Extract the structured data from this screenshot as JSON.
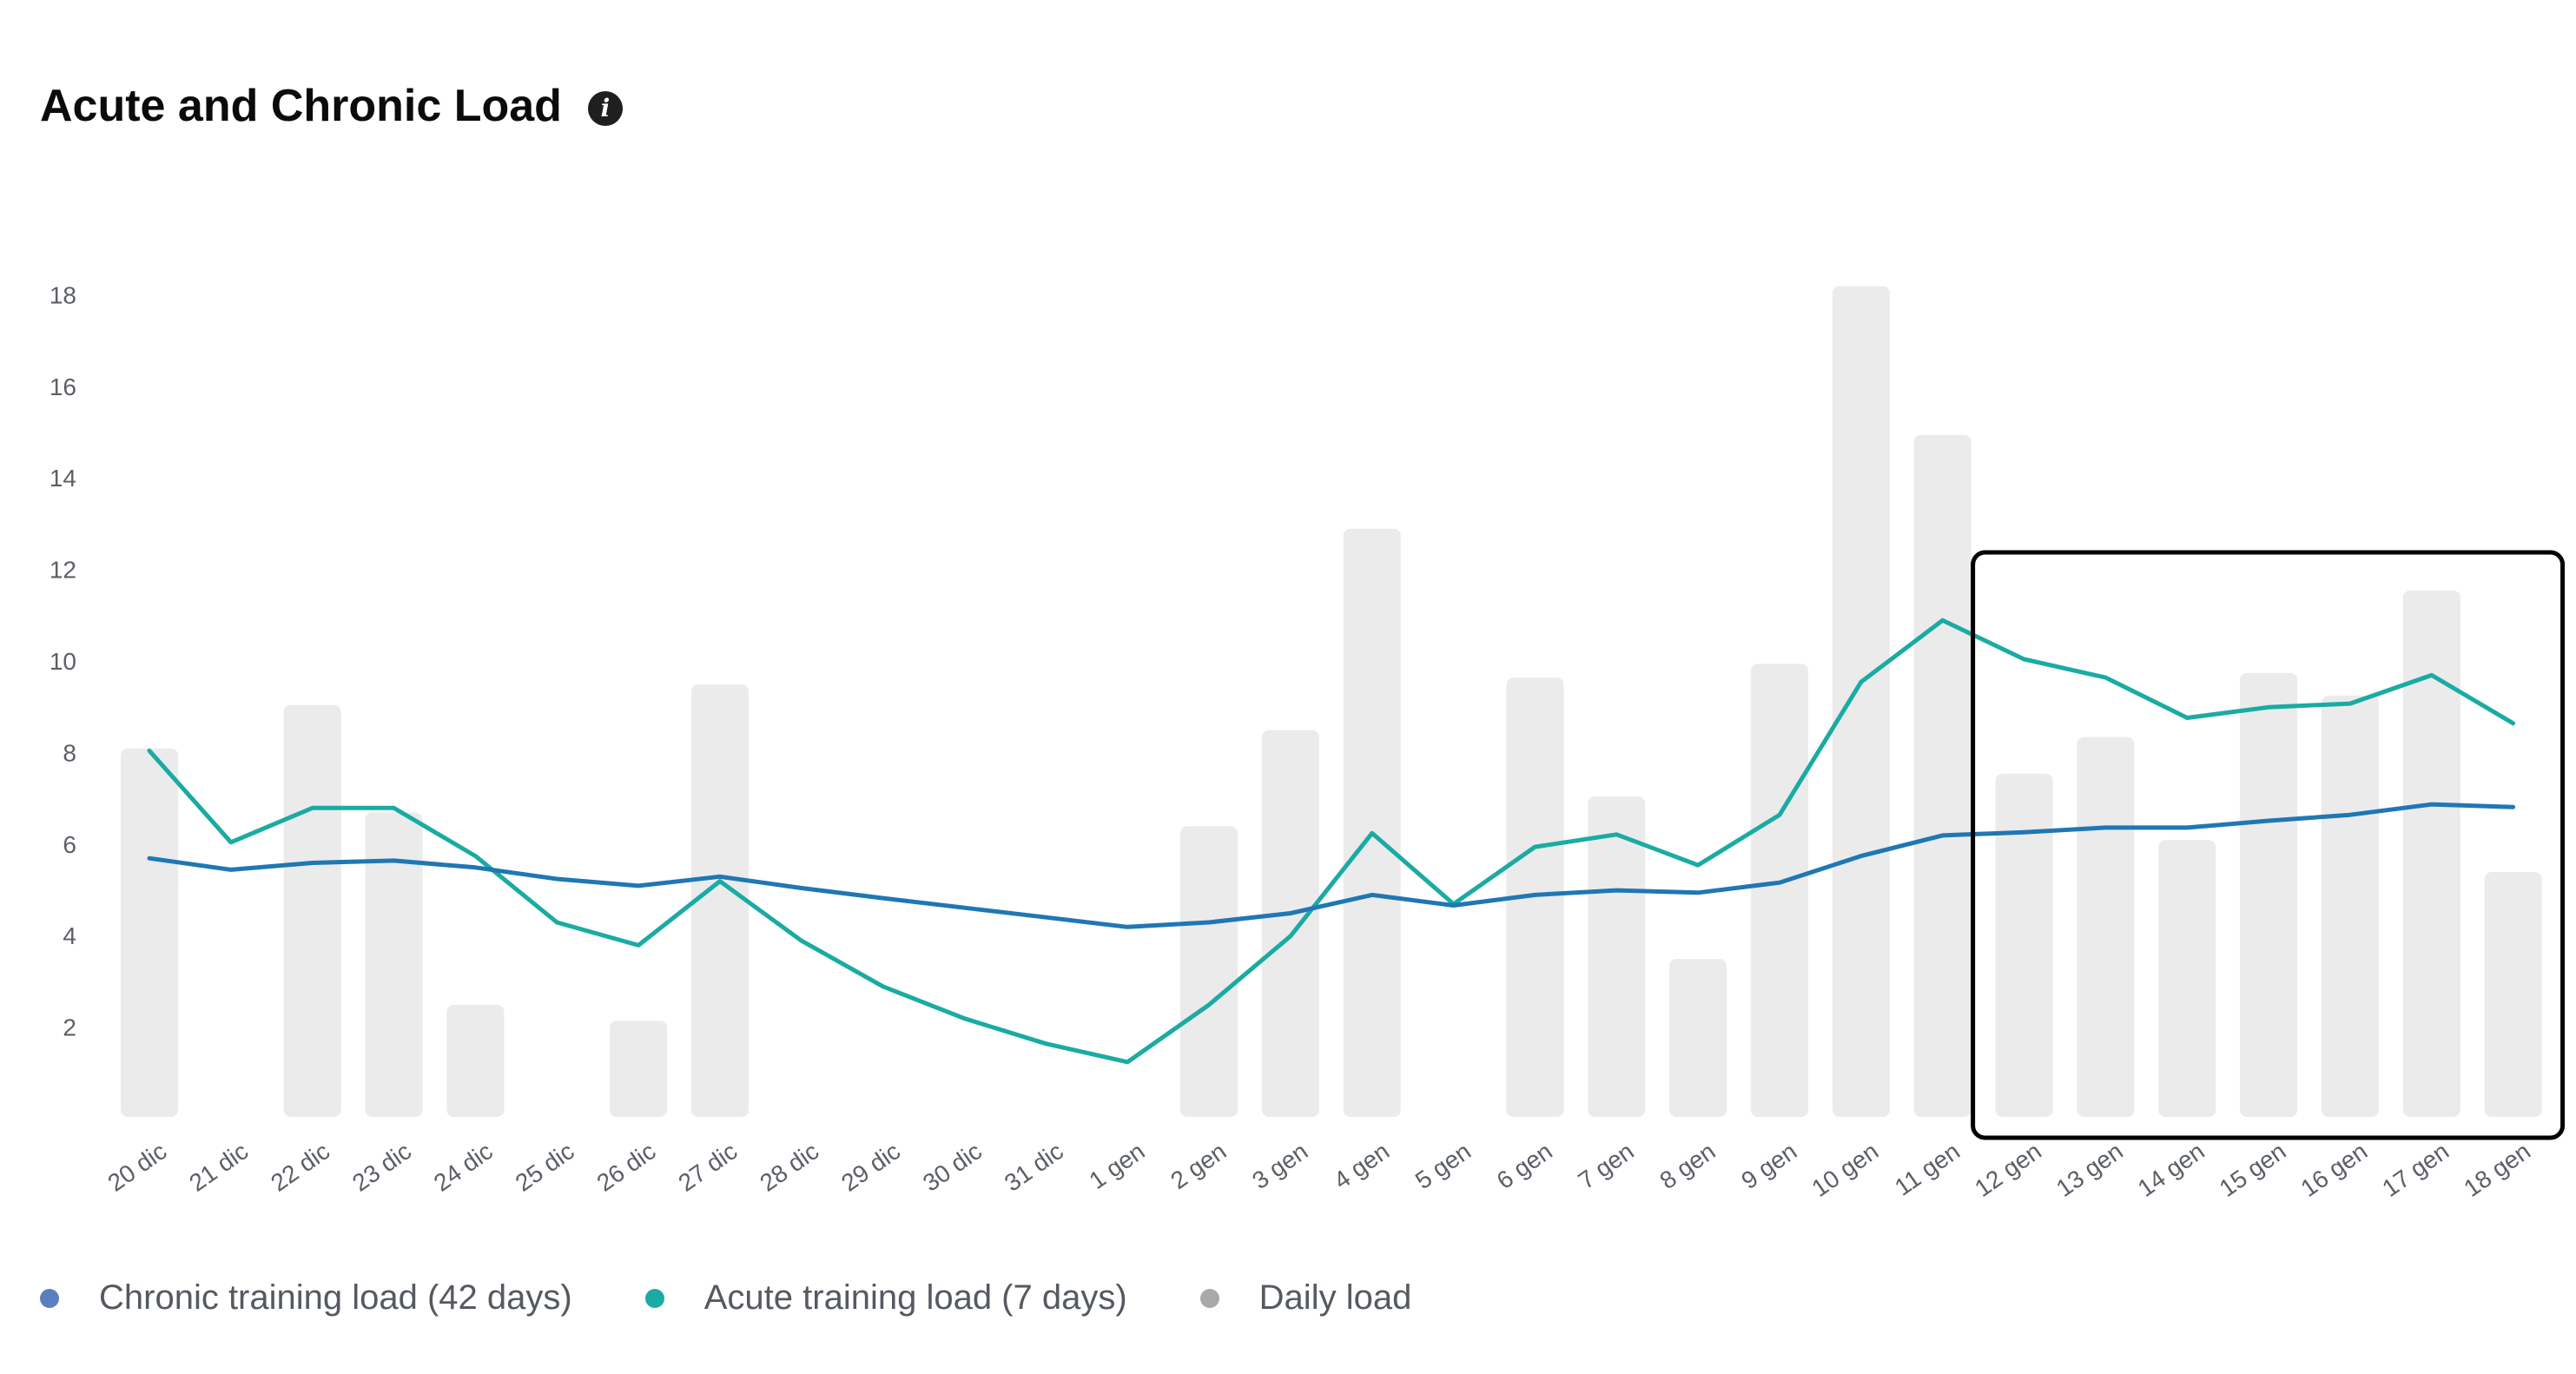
{
  "header": {
    "title": "Acute and Chronic Load",
    "info_icon": "info-icon"
  },
  "colors": {
    "chronic": "#1f77b4",
    "acute": "#1aaba3",
    "daily": "#ebebeb",
    "legend_chronic": "#5a7fc1",
    "legend_acute": "#1aaba3",
    "legend_daily": "#a9a9a9",
    "highlight_box": "#000000"
  },
  "chart_data": {
    "type": "bar",
    "title": "Acute and Chronic Load",
    "xlabel": "",
    "ylabel": "",
    "ylim": [
      0,
      18
    ],
    "yticks": [
      2,
      4,
      6,
      8,
      10,
      12,
      14,
      16,
      18
    ],
    "grid": false,
    "legend_position": "bottom-left",
    "categories": [
      "20 dic",
      "21 dic",
      "22 dic",
      "23 dic",
      "24 dic",
      "25 dic",
      "26 dic",
      "27 dic",
      "28 dic",
      "29 dic",
      "30 dic",
      "31 dic",
      "1 gen",
      "2 gen",
      "3 gen",
      "4 gen",
      "5 gen",
      "6 gen",
      "7 gen",
      "8 gen",
      "9 gen",
      "10 gen",
      "11 gen",
      "12 gen",
      "13 gen",
      "14 gen",
      "15 gen",
      "16 gen",
      "17 gen",
      "18 gen"
    ],
    "series": [
      {
        "name": "Chronic training load (42 days)",
        "type": "line",
        "values": [
          5.65,
          5.4,
          5.55,
          5.6,
          5.45,
          5.2,
          5.05,
          5.25,
          5.0,
          4.78,
          4.57,
          4.36,
          4.15,
          4.25,
          4.45,
          4.85,
          4.62,
          4.85,
          4.95,
          4.9,
          5.12,
          5.7,
          6.15,
          6.22,
          6.32,
          6.32,
          6.47,
          6.6,
          6.83,
          6.77
        ]
      },
      {
        "name": "Acute training load (7 days)",
        "type": "line",
        "values": [
          8.0,
          6.0,
          6.75,
          6.75,
          5.7,
          4.25,
          3.75,
          5.15,
          3.85,
          2.85,
          2.15,
          1.6,
          1.2,
          2.45,
          3.95,
          6.2,
          4.65,
          5.9,
          6.17,
          5.5,
          6.6,
          9.5,
          10.85,
          10.0,
          9.6,
          8.72,
          8.95,
          9.03,
          9.65,
          8.6
        ]
      },
      {
        "name": "Daily load",
        "type": "bar",
        "values": [
          8.05,
          0,
          9.0,
          6.65,
          2.45,
          0,
          2.1,
          9.45,
          0,
          0,
          0,
          0,
          0,
          6.35,
          8.45,
          12.85,
          0,
          9.6,
          7.0,
          3.45,
          9.9,
          18.15,
          14.9,
          7.5,
          8.3,
          6.05,
          9.7,
          9.2,
          11.5,
          5.35
        ]
      }
    ],
    "annotations": [
      {
        "type": "highlight-box",
        "from": "12 gen",
        "to": "18 gen"
      }
    ]
  },
  "legend": [
    {
      "label": "Chronic training load (42 days)",
      "color_key": "legend_chronic"
    },
    {
      "label": "Acute training load (7 days)",
      "color_key": "legend_acute"
    },
    {
      "label": "Daily load",
      "color_key": "legend_daily"
    }
  ]
}
